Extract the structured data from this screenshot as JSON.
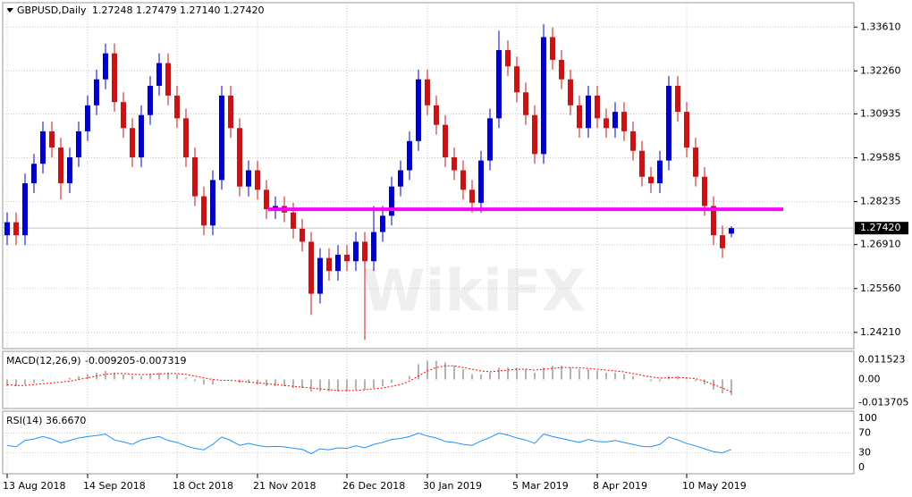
{
  "chart_data": {
    "type": "candlestick",
    "symbol": "GBPUSD,Daily",
    "ohlc": "1.27248 1.27479 1.27140 1.27420",
    "watermark": "WikiFX",
    "up_color": "#0000cd",
    "down_color": "#c81414",
    "categories": [
      "13 Aug 2018",
      null,
      null,
      null,
      null,
      null,
      null,
      null,
      null,
      "14 Sep 2018",
      null,
      null,
      null,
      null,
      null,
      null,
      null,
      null,
      null,
      "18 Oct 2018",
      null,
      null,
      null,
      null,
      null,
      null,
      null,
      null,
      "21 Nov 2018",
      null,
      null,
      null,
      null,
      null,
      null,
      null,
      null,
      null,
      "26 Dec 2018",
      null,
      null,
      null,
      null,
      null,
      null,
      null,
      null,
      "30 Jan 2019",
      null,
      null,
      null,
      null,
      null,
      null,
      null,
      null,
      null,
      "5 Mar 2019",
      null,
      null,
      null,
      null,
      null,
      null,
      null,
      null,
      "8 Apr 2019",
      null,
      null,
      null,
      null,
      null,
      null,
      null,
      null,
      null,
      "10 May 2019",
      null,
      null,
      null,
      null,
      null
    ],
    "open": [
      1.272,
      1.276,
      1.272,
      1.288,
      1.294,
      1.304,
      1.299,
      1.288,
      1.296,
      1.304,
      1.312,
      1.32,
      1.328,
      1.313,
      1.305,
      1.296,
      1.309,
      1.318,
      1.325,
      1.315,
      1.308,
      1.296,
      1.284,
      1.275,
      1.289,
      1.315,
      1.305,
      1.287,
      1.292,
      1.286,
      1.28,
      1.281,
      1.279,
      1.274,
      1.27,
      1.254,
      1.265,
      1.261,
      1.266,
      1.264,
      1.27,
      1.264,
      1.273,
      1.278,
      1.287,
      1.292,
      1.301,
      1.32,
      1.312,
      1.306,
      1.296,
      1.292,
      1.286,
      1.282,
      1.295,
      1.308,
      1.329,
      1.324,
      1.316,
      1.309,
      1.297,
      1.333,
      1.326,
      1.32,
      1.312,
      1.305,
      1.315,
      1.308,
      1.305,
      1.31,
      1.304,
      1.298,
      1.29,
      1.288,
      1.295,
      1.318,
      1.31,
      1.299,
      1.29,
      1.281,
      1.272,
      1.2725
    ],
    "high": [
      1.279,
      1.279,
      1.291,
      1.297,
      1.307,
      1.307,
      1.302,
      1.299,
      1.307,
      1.315,
      1.323,
      1.331,
      1.331,
      1.316,
      1.308,
      1.312,
      1.321,
      1.328,
      1.328,
      1.318,
      1.311,
      1.299,
      1.287,
      1.292,
      1.318,
      1.318,
      1.308,
      1.295,
      1.295,
      1.289,
      1.284,
      1.284,
      1.282,
      1.277,
      1.273,
      1.268,
      1.268,
      1.269,
      1.269,
      1.273,
      1.273,
      1.281,
      1.281,
      1.29,
      1.295,
      1.304,
      1.323,
      1.323,
      1.315,
      1.309,
      1.299,
      1.295,
      1.289,
      1.298,
      1.311,
      1.335,
      1.332,
      1.327,
      1.319,
      1.312,
      1.337,
      1.336,
      1.329,
      1.323,
      1.315,
      1.318,
      1.318,
      1.311,
      1.313,
      1.313,
      1.307,
      1.301,
      1.293,
      1.298,
      1.321,
      1.321,
      1.313,
      1.302,
      1.293,
      1.284,
      1.275,
      1.2748
    ],
    "low": [
      1.269,
      1.269,
      1.269,
      1.285,
      1.291,
      1.296,
      1.283,
      1.285,
      1.293,
      1.301,
      1.309,
      1.317,
      1.31,
      1.302,
      1.293,
      1.293,
      1.306,
      1.315,
      1.312,
      1.305,
      1.293,
      1.281,
      1.272,
      1.272,
      1.286,
      1.302,
      1.284,
      1.284,
      1.283,
      1.277,
      1.277,
      1.276,
      1.271,
      1.267,
      1.2475,
      1.251,
      1.258,
      1.258,
      1.261,
      1.261,
      1.2398,
      1.261,
      1.27,
      1.275,
      1.284,
      1.289,
      1.298,
      1.309,
      1.303,
      1.293,
      1.289,
      1.283,
      1.279,
      1.279,
      1.292,
      1.305,
      1.321,
      1.313,
      1.306,
      1.294,
      1.294,
      1.323,
      1.317,
      1.309,
      1.302,
      1.302,
      1.305,
      1.302,
      1.302,
      1.301,
      1.295,
      1.287,
      1.285,
      1.285,
      1.292,
      1.307,
      1.296,
      1.287,
      1.278,
      1.269,
      1.265,
      1.2714
    ],
    "close": [
      1.276,
      1.272,
      1.288,
      1.294,
      1.304,
      1.299,
      1.288,
      1.296,
      1.304,
      1.312,
      1.32,
      1.328,
      1.313,
      1.305,
      1.296,
      1.309,
      1.318,
      1.325,
      1.315,
      1.308,
      1.296,
      1.284,
      1.275,
      1.289,
      1.315,
      1.305,
      1.287,
      1.292,
      1.286,
      1.28,
      1.281,
      1.279,
      1.274,
      1.27,
      1.254,
      1.265,
      1.261,
      1.266,
      1.264,
      1.27,
      1.264,
      1.273,
      1.278,
      1.287,
      1.292,
      1.301,
      1.32,
      1.312,
      1.306,
      1.296,
      1.292,
      1.286,
      1.282,
      1.295,
      1.308,
      1.329,
      1.324,
      1.316,
      1.309,
      1.297,
      1.333,
      1.326,
      1.32,
      1.312,
      1.305,
      1.315,
      1.308,
      1.305,
      1.31,
      1.304,
      1.298,
      1.29,
      1.288,
      1.295,
      1.318,
      1.31,
      1.299,
      1.29,
      1.281,
      1.272,
      1.268,
      1.2742
    ],
    "ylim": [
      1.2371,
      1.3436
    ],
    "yticks": [
      {
        "value": 1.3361,
        "label": "1.33610"
      },
      {
        "value": 1.3226,
        "label": "1.32260"
      },
      {
        "value": 1.30935,
        "label": "1.30935"
      },
      {
        "value": 1.29585,
        "label": "1.29585"
      },
      {
        "value": 1.28235,
        "label": "1.28235"
      },
      {
        "value": 1.2691,
        "label": "1.26910"
      },
      {
        "value": 1.2556,
        "label": "1.25560"
      },
      {
        "value": 1.2421,
        "label": "1.24210"
      }
    ],
    "last_price": {
      "value": 1.2742,
      "label": "1.27420"
    },
    "level": {
      "value": 1.28,
      "color": "#ff00ff"
    },
    "grid": true,
    "macd": {
      "type": "macd",
      "label": "MACD(12,26,9)",
      "hist_color": "#b4b4b4",
      "signal_color": "#ff0000",
      "ylim": [
        -0.0165,
        0.016
      ],
      "yticks": [
        0.011523,
        {
          "value": 0,
          "label": "0.00"
        },
        -0.013705
      ],
      "histogram": [
        -0.004,
        -0.004,
        -0.003,
        -0.002,
        -0.001,
        0.0,
        0.0,
        0.001,
        0.002,
        0.003,
        0.004,
        0.005,
        0.004,
        0.003,
        0.002,
        0.002,
        0.003,
        0.004,
        0.004,
        0.003,
        0.001,
        -0.001,
        -0.003,
        -0.003,
        0.0,
        0.0,
        -0.002,
        -0.002,
        -0.003,
        -0.004,
        -0.004,
        -0.004,
        -0.005,
        -0.005,
        -0.007,
        -0.007,
        -0.007,
        -0.007,
        -0.007,
        -0.006,
        -0.006,
        -0.005,
        -0.004,
        -0.002,
        0.0,
        0.002,
        0.009,
        0.011,
        0.011,
        0.01,
        0.008,
        0.006,
        0.003,
        0.003,
        0.004,
        0.007,
        0.007,
        0.007,
        0.006,
        0.004,
        0.007,
        0.008,
        0.008,
        0.007,
        0.006,
        0.006,
        0.005,
        0.004,
        0.004,
        0.003,
        0.002,
        0.0,
        -0.001,
        -0.001,
        0.002,
        0.002,
        0.001,
        -0.001,
        -0.003,
        -0.006,
        -0.008,
        -0.009205
      ],
      "signal": [
        -0.003,
        -0.0035,
        -0.0035,
        -0.003,
        -0.0025,
        -0.002,
        -0.0015,
        -0.001,
        0.0,
        0.001,
        0.002,
        0.003,
        0.0035,
        0.0035,
        0.003,
        0.0028,
        0.003,
        0.0033,
        0.0035,
        0.0035,
        0.003,
        0.002,
        0.001,
        0.0,
        -0.0005,
        -0.0005,
        -0.001,
        -0.0015,
        -0.002,
        -0.0025,
        -0.003,
        -0.0035,
        -0.004,
        -0.0045,
        -0.005,
        -0.0055,
        -0.006,
        -0.0065,
        -0.0065,
        -0.0065,
        -0.006,
        -0.0055,
        -0.005,
        -0.004,
        -0.003,
        -0.001,
        0.002,
        0.005,
        0.007,
        0.008,
        0.008,
        0.007,
        0.006,
        0.005,
        0.0045,
        0.005,
        0.0055,
        0.006,
        0.006,
        0.0055,
        0.006,
        0.0065,
        0.007,
        0.007,
        0.0068,
        0.0065,
        0.006,
        0.0055,
        0.005,
        0.0045,
        0.0035,
        0.0025,
        0.0015,
        0.0008,
        0.001,
        0.0012,
        0.001,
        0.0005,
        -0.001,
        -0.003,
        -0.005,
        -0.007319
      ]
    },
    "rsi": {
      "type": "rsi",
      "label": "RSI(14) 36.6670",
      "color": "#1e90ff",
      "ylim": [
        0,
        100
      ],
      "yticks": [
        100,
        70,
        30,
        0
      ],
      "levels": [
        70,
        30
      ],
      "values": [
        45,
        42,
        55,
        58,
        63,
        58,
        50,
        55,
        60,
        63,
        65,
        68,
        56,
        52,
        47,
        56,
        60,
        63,
        55,
        51,
        44,
        39,
        36,
        47,
        62,
        55,
        45,
        49,
        45,
        42,
        43,
        42,
        39,
        37,
        28,
        38,
        36,
        40,
        39,
        44,
        40,
        47,
        51,
        57,
        59,
        63,
        70,
        64,
        60,
        53,
        51,
        47,
        45,
        54,
        61,
        70,
        66,
        60,
        56,
        49,
        68,
        63,
        59,
        55,
        51,
        57,
        53,
        52,
        55,
        51,
        47,
        43,
        42,
        47,
        62,
        56,
        49,
        44,
        38,
        32,
        30,
        36.667
      ]
    }
  }
}
